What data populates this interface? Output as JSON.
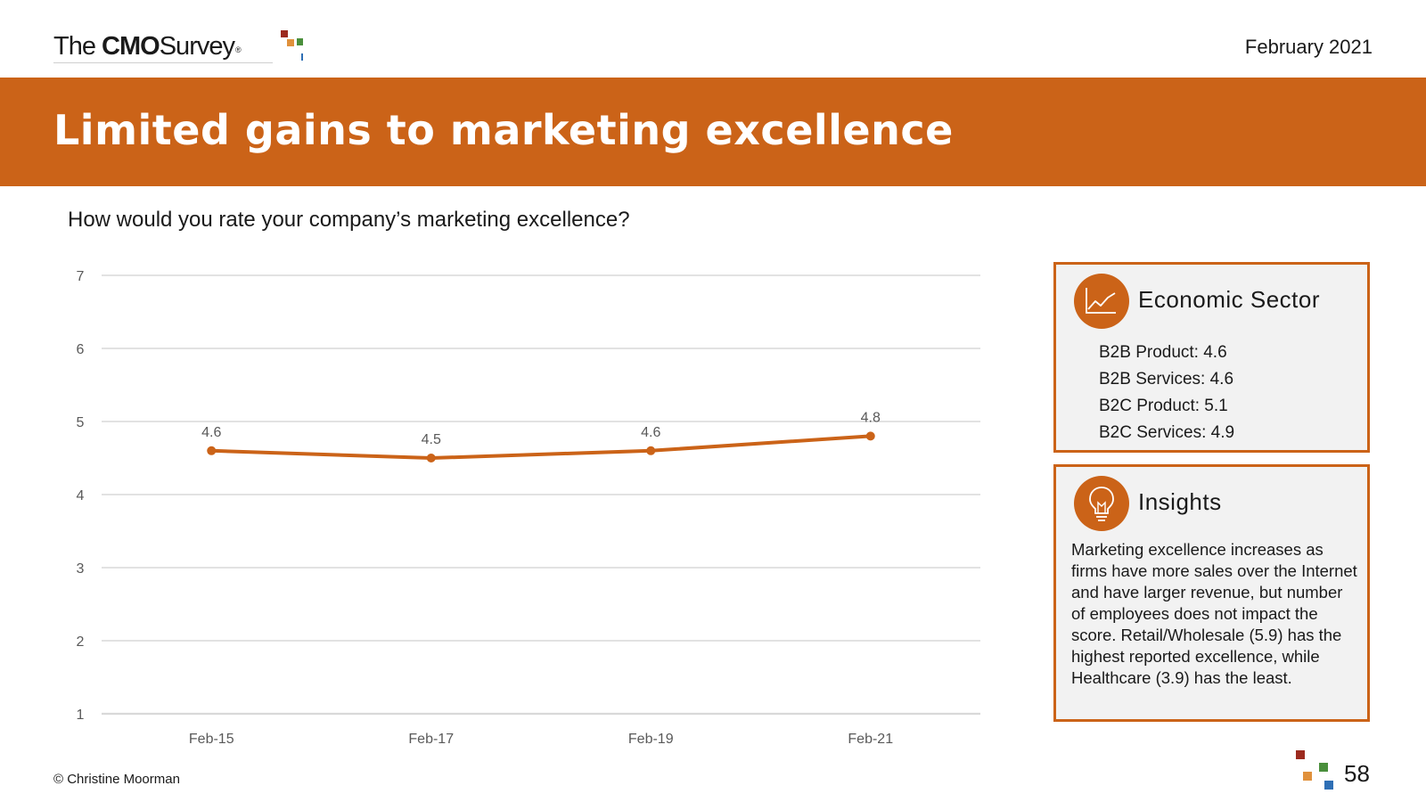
{
  "header": {
    "logo": {
      "word1": "The",
      "word2": "CMO",
      "word3": "Survey",
      "mark": "®"
    },
    "date": "February 2021"
  },
  "banner": {
    "title": "Limited gains to marketing excellence"
  },
  "question": "How would you rate your company’s marketing excellence?",
  "colors": {
    "accent": "#cb6318",
    "panel_bg": "#f2f2f2",
    "grid": "#d9d9d9",
    "logo_squares": [
      "#9c2a1e",
      "#e0913c",
      "#4a8f3c",
      "#2e6fb5"
    ]
  },
  "chart_data": {
    "type": "line",
    "categories": [
      "Feb-15",
      "Feb-17",
      "Feb-19",
      "Feb-21"
    ],
    "series": [
      {
        "values": [
          4.6,
          4.5,
          4.6,
          4.8
        ],
        "color": "#cb6318"
      }
    ],
    "data_labels": [
      "4.6",
      "4.5",
      "4.6",
      "4.8"
    ],
    "ylim": [
      1,
      7
    ],
    "yticks": [
      1,
      2,
      3,
      4,
      5,
      6,
      7
    ],
    "grid": true,
    "legend": "none"
  },
  "sector_panel": {
    "icon": "line-chart-icon",
    "heading": "Economic Sector",
    "items": [
      "B2B Product: 4.6",
      "B2B Services: 4.6",
      "B2C Product: 5.1",
      "B2C Services: 4.9"
    ]
  },
  "insights_panel": {
    "icon": "lightbulb-icon",
    "heading": "Insights",
    "text": "Marketing excellence increases as firms have more sales over the Internet and have larger revenue, but number of employees does not impact the score. Retail/Wholesale (5.9) has the highest reported excellence, while Healthcare (3.9) has the least."
  },
  "footer": {
    "copyright": "© Christine Moorman",
    "page_number": "58"
  }
}
